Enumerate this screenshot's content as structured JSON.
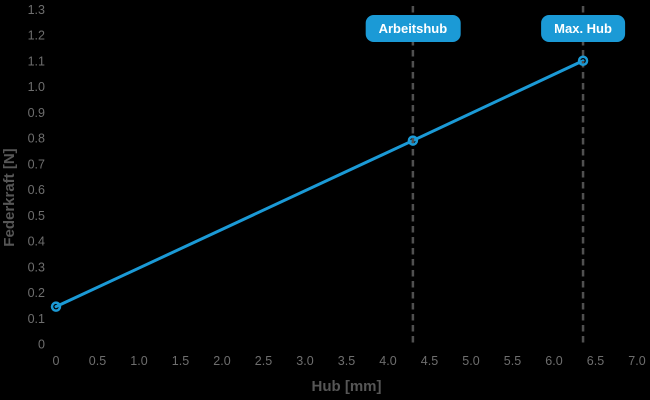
{
  "chart_data": {
    "type": "line",
    "title": "",
    "xlabel": "Hub [mm]",
    "ylabel": "Federkraft [N]",
    "xlim": [
      0,
      7.0
    ],
    "ylim": [
      0,
      1.3
    ],
    "grid": false,
    "legend": "none",
    "background": "#000000",
    "x_ticks": [
      "0",
      "0.5",
      "1.0",
      "1.5",
      "2.0",
      "2.5",
      "3.0",
      "3.5",
      "4.0",
      "4.5",
      "5.0",
      "5.5",
      "6.0",
      "6.5",
      "7.0"
    ],
    "y_ticks": [
      "0",
      "0.1",
      "0.2",
      "0.3",
      "0.4",
      "0.5",
      "0.6",
      "0.7",
      "0.8",
      "0.9",
      "1.0",
      "1.1",
      "1.2",
      "1.3"
    ],
    "series": [
      {
        "name": "Federkraft",
        "marker": "open-circle",
        "points": [
          {
            "x": 0,
            "y": 0.145
          },
          {
            "x": 4.3,
            "y": 0.79
          },
          {
            "x": 6.35,
            "y": 1.1
          }
        ]
      }
    ],
    "annotations": [
      {
        "label": "Arbeitshub",
        "x": 4.3,
        "line_style": "dashed"
      },
      {
        "label": "Max. Hub",
        "x": 6.35,
        "line_style": "dashed"
      }
    ],
    "colors": {
      "line": "#1b9ad6",
      "badge_bg": "#1b9ad6",
      "badge_text": "#ffffff",
      "tick_label": "#6e6e6e",
      "axis_label": "#565656",
      "dashed_line": "#505050"
    }
  }
}
